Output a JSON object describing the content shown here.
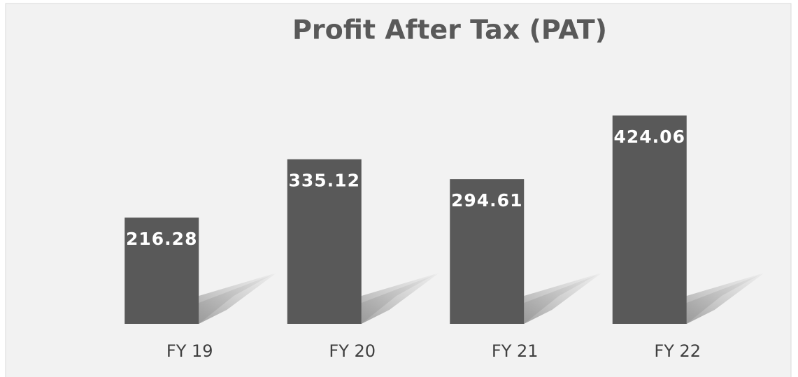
{
  "chart_data": {
    "type": "bar",
    "title": "Profit After Tax (PAT)",
    "categories": [
      "FY 19",
      "FY 20",
      "FY 21",
      "FY 22"
    ],
    "values": [
      216.28,
      335.12,
      294.61,
      424.06
    ],
    "color": "#595959",
    "ylim": [
      0,
      450
    ]
  }
}
